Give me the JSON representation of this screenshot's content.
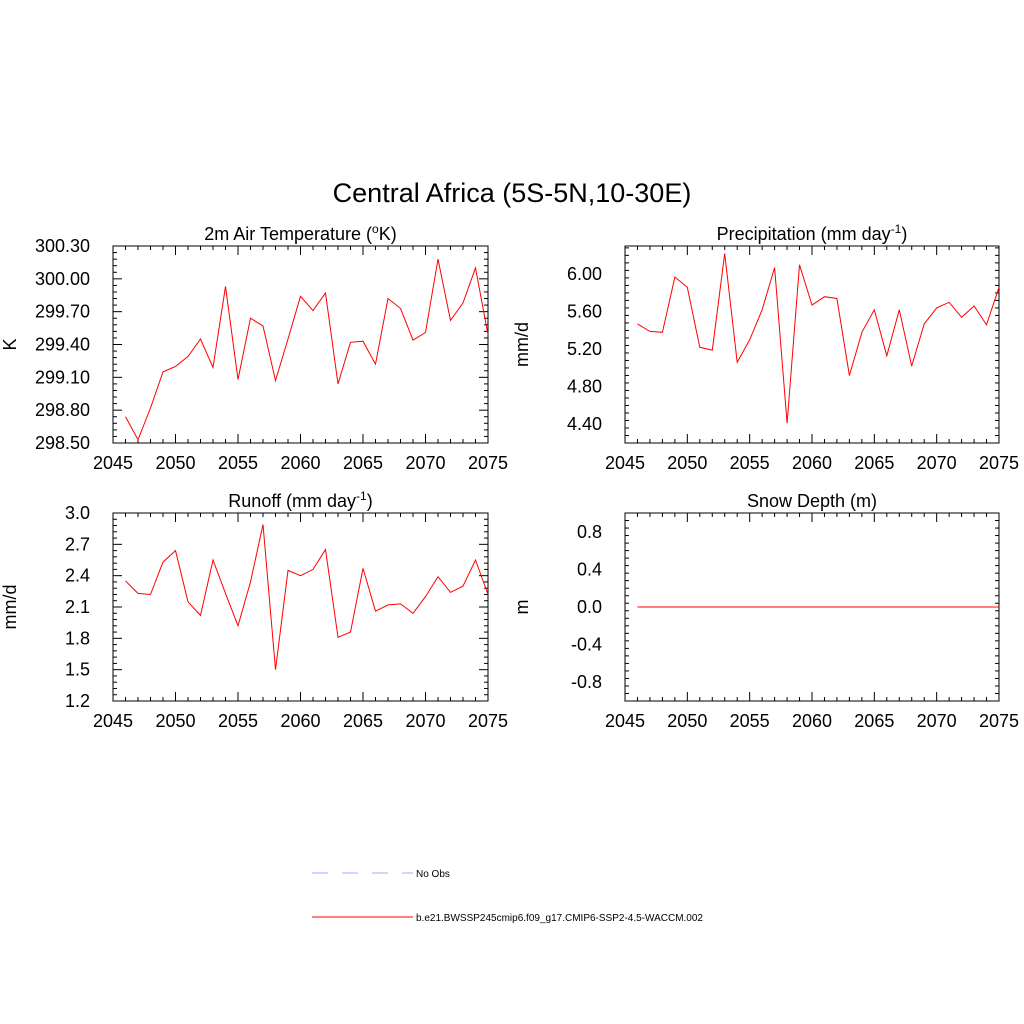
{
  "figure": {
    "title": "Central Africa (5S-5N,10-30E)"
  },
  "chart_data": [
    {
      "id": "temperature",
      "type": "line",
      "title_main": "2m Air Temperature (",
      "title_sup": "o",
      "title_tail": "K)",
      "ylabel": "K",
      "xlabel": "",
      "xlim": [
        2045,
        2075
      ],
      "ylim": [
        298.5,
        300.3
      ],
      "xticks": [
        2045,
        2050,
        2055,
        2060,
        2065,
        2070,
        2075
      ],
      "yticks": [
        298.5,
        298.8,
        299.1,
        299.4,
        299.7,
        300.0,
        300.3
      ],
      "ytick_labels": [
        "298.50",
        "298.80",
        "299.10",
        "299.40",
        "299.70",
        "300.00",
        "300.30"
      ],
      "grid": false,
      "series": [
        {
          "color": "#ff0000",
          "x": [
            2046,
            2047,
            2048,
            2049,
            2050,
            2051,
            2052,
            2053,
            2054,
            2055,
            2056,
            2057,
            2058,
            2059,
            2060,
            2061,
            2062,
            2063,
            2064,
            2065,
            2066,
            2067,
            2068,
            2069,
            2070,
            2071,
            2072,
            2073,
            2074,
            2075
          ],
          "y": [
            298.74,
            298.53,
            298.82,
            299.15,
            299.2,
            299.29,
            299.45,
            299.19,
            299.93,
            299.08,
            299.64,
            299.57,
            299.07,
            299.45,
            299.84,
            299.71,
            299.87,
            299.04,
            299.42,
            299.43,
            299.22,
            299.82,
            299.73,
            299.44,
            299.51,
            300.18,
            299.62,
            299.78,
            300.1,
            299.49
          ]
        }
      ]
    },
    {
      "id": "precipitation",
      "type": "line",
      "title_main": "Precipitation (mm day",
      "title_sup": "-1",
      "title_tail": ")",
      "ylabel": "mm/d",
      "xlabel": "",
      "xlim": [
        2045,
        2075
      ],
      "ylim": [
        4.2,
        6.3
      ],
      "xticks": [
        2045,
        2050,
        2055,
        2060,
        2065,
        2070,
        2075
      ],
      "yticks": [
        4.4,
        4.8,
        5.2,
        5.6,
        6.0
      ],
      "ytick_labels": [
        "4.40",
        "4.80",
        "5.20",
        "5.60",
        "6.00"
      ],
      "grid": false,
      "series": [
        {
          "color": "#ff0000",
          "x": [
            2046,
            2047,
            2048,
            2049,
            2050,
            2051,
            2052,
            2053,
            2054,
            2055,
            2056,
            2057,
            2058,
            2059,
            2060,
            2061,
            2062,
            2063,
            2064,
            2065,
            2066,
            2067,
            2068,
            2069,
            2070,
            2071,
            2072,
            2073,
            2074,
            2075
          ],
          "y": [
            5.47,
            5.39,
            5.38,
            5.97,
            5.86,
            5.22,
            5.19,
            6.22,
            5.06,
            5.3,
            5.62,
            6.07,
            4.41,
            6.1,
            5.67,
            5.76,
            5.74,
            4.92,
            5.38,
            5.62,
            5.13,
            5.62,
            5.02,
            5.47,
            5.64,
            5.7,
            5.54,
            5.66,
            5.46,
            5.86
          ]
        }
      ]
    },
    {
      "id": "runoff",
      "type": "line",
      "title_main": "Runoff (mm day",
      "title_sup": "-1",
      "title_tail": ")",
      "ylabel": "mm/d",
      "xlabel": "",
      "xlim": [
        2045,
        2075
      ],
      "ylim": [
        1.2,
        3.0
      ],
      "xticks": [
        2045,
        2050,
        2055,
        2060,
        2065,
        2070,
        2075
      ],
      "yticks": [
        1.2,
        1.5,
        1.8,
        2.1,
        2.4,
        2.7,
        3.0
      ],
      "ytick_labels": [
        "1.2",
        "1.5",
        "1.8",
        "2.1",
        "2.4",
        "2.7",
        "3.0"
      ],
      "grid": false,
      "series": [
        {
          "color": "#ff0000",
          "x": [
            2046,
            2047,
            2048,
            2049,
            2050,
            2051,
            2052,
            2053,
            2054,
            2055,
            2056,
            2057,
            2058,
            2059,
            2060,
            2061,
            2062,
            2063,
            2064,
            2065,
            2066,
            2067,
            2068,
            2069,
            2070,
            2071,
            2072,
            2073,
            2074,
            2075
          ],
          "y": [
            2.35,
            2.23,
            2.22,
            2.53,
            2.64,
            2.15,
            2.02,
            2.55,
            2.23,
            1.92,
            2.34,
            2.89,
            1.5,
            2.45,
            2.4,
            2.46,
            2.65,
            1.81,
            1.86,
            2.47,
            2.06,
            2.12,
            2.13,
            2.04,
            2.2,
            2.39,
            2.24,
            2.3,
            2.55,
            2.22
          ]
        }
      ]
    },
    {
      "id": "snow",
      "type": "line",
      "title_main": "Snow Depth (m)",
      "title_sup": "",
      "title_tail": "",
      "ylabel": "m",
      "xlabel": "",
      "xlim": [
        2045,
        2075
      ],
      "ylim": [
        -1.0,
        1.0
      ],
      "xticks": [
        2045,
        2050,
        2055,
        2060,
        2065,
        2070,
        2075
      ],
      "yticks": [
        -0.8,
        -0.4,
        0.0,
        0.4,
        0.8
      ],
      "ytick_labels": [
        "-0.8",
        "-0.4",
        "0.0",
        "0.4",
        "0.8"
      ],
      "grid": false,
      "series": [
        {
          "color": "#ff0000",
          "x": [
            2046,
            2047,
            2048,
            2049,
            2050,
            2051,
            2052,
            2053,
            2054,
            2055,
            2056,
            2057,
            2058,
            2059,
            2060,
            2061,
            2062,
            2063,
            2064,
            2065,
            2066,
            2067,
            2068,
            2069,
            2070,
            2071,
            2072,
            2073,
            2074,
            2075
          ],
          "y": [
            0,
            0,
            0,
            0,
            0,
            0,
            0,
            0,
            0,
            0,
            0,
            0,
            0,
            0,
            0,
            0,
            0,
            0,
            0,
            0,
            0,
            0,
            0,
            0,
            0,
            0,
            0,
            0,
            0,
            0
          ]
        }
      ]
    }
  ],
  "legend": {
    "placement": "bottom-center",
    "entries": [
      {
        "label": "No Obs",
        "color": "#aaaaff",
        "style": "dashed"
      },
      {
        "label": "b.e21.BWSSP245cmip6.f09_g17.CMIP6-SSP2-4.5-WACCM.002",
        "color": "#ff0000",
        "style": "solid"
      }
    ]
  }
}
